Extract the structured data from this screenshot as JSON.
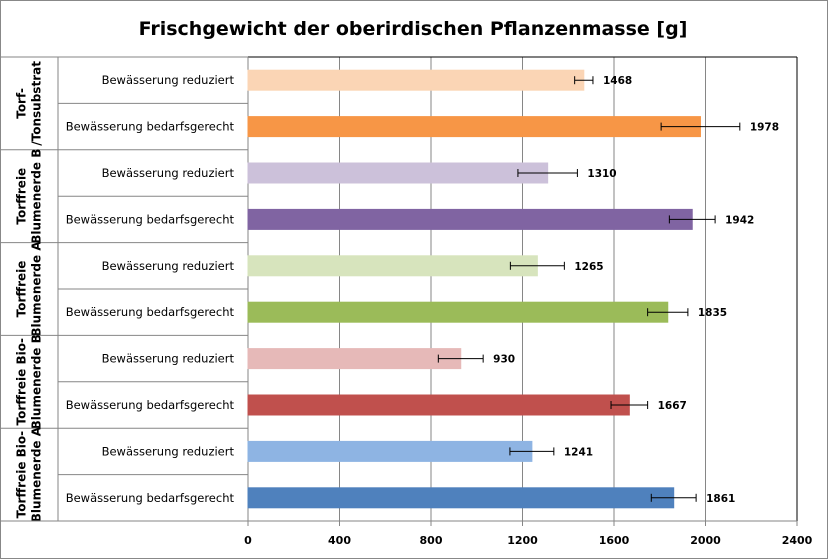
{
  "chart_data": {
    "type": "bar",
    "orientation": "horizontal",
    "title": "Frischgewicht der oberirdischen Pflanzenmasse [g]",
    "xlabel": "",
    "ylabel": "",
    "xlim": [
      0,
      2400
    ],
    "x_ticks": [
      "0",
      "400",
      "800",
      "1200",
      "1600",
      "2000",
      "2400"
    ],
    "x_tick_values": [
      0,
      400,
      800,
      1200,
      1600,
      2000,
      2400
    ],
    "grid": true,
    "groups": [
      {
        "label_lines": [
          "Torf-",
          "/Tonsubstrat"
        ],
        "bars": [
          {
            "label": "Bewässerung reduziert",
            "value": 1468,
            "error": 40,
            "color": "#FBD5B5"
          },
          {
            "label": "Bewässerung bedarfsgerecht",
            "value": 1978,
            "error": 172,
            "color": "#F79646"
          }
        ]
      },
      {
        "label_lines": [
          "Torffreie",
          "Blumenerde B"
        ],
        "bars": [
          {
            "label": "Bewässerung reduziert",
            "value": 1310,
            "error": 130,
            "color": "#CCC1DA"
          },
          {
            "label": "Bewässerung bedarfsgerecht",
            "value": 1942,
            "error": 100,
            "color": "#8064A2"
          }
        ]
      },
      {
        "label_lines": [
          "Torffreie",
          "Blumenerde A"
        ],
        "bars": [
          {
            "label": "Bewässerung reduziert",
            "value": 1265,
            "error": 118,
            "color": "#D7E4BD"
          },
          {
            "label": "Bewässerung bedarfsgerecht",
            "value": 1835,
            "error": 88,
            "color": "#9BBB59"
          }
        ]
      },
      {
        "label_lines": [
          "Torffreie Bio-",
          "Blumenerde B"
        ],
        "bars": [
          {
            "label": "Bewässerung reduziert",
            "value": 930,
            "error": 98,
            "color": "#E6B9B8"
          },
          {
            "label": "Bewässerung bedarfsgerecht",
            "value": 1667,
            "error": 80,
            "color": "#C0504D"
          }
        ]
      },
      {
        "label_lines": [
          "Torffreie Bio-",
          "Blumenerde A"
        ],
        "bars": [
          {
            "label": "Bewässerung reduziert",
            "value": 1241,
            "error": 96,
            "color": "#8EB4E3"
          },
          {
            "label": "Bewässerung bedarfsgerecht",
            "value": 1861,
            "error": 98,
            "color": "#4F81BD"
          }
        ]
      }
    ]
  }
}
